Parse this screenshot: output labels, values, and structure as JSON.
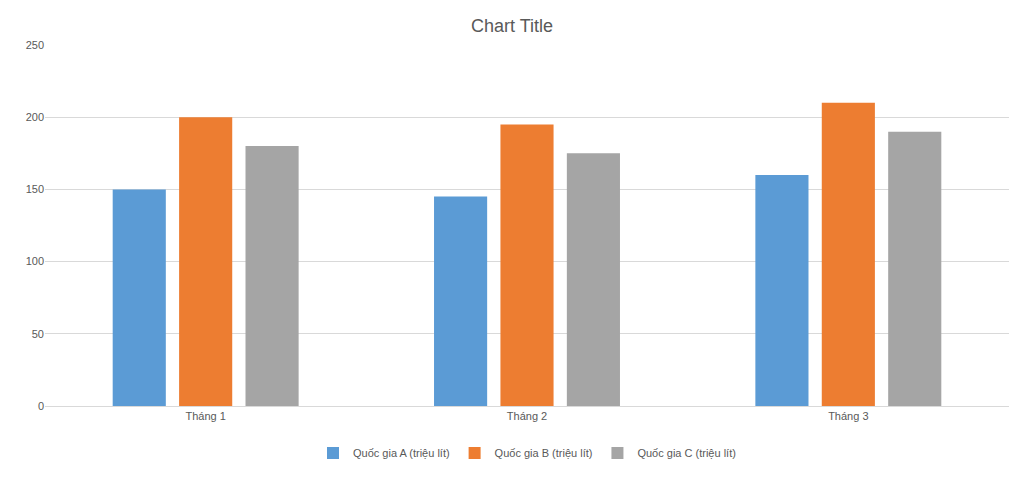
{
  "chart_data": {
    "type": "bar",
    "title": "Chart Title",
    "categories": [
      "Tháng 1",
      "Tháng 2",
      "Tháng 3"
    ],
    "series": [
      {
        "name": "Quốc gia A (triệu lít)",
        "color": "#5b9bd5",
        "values": [
          150,
          145,
          160
        ]
      },
      {
        "name": "Quốc gia B (triệu lít)",
        "color": "#ed7d31",
        "values": [
          200,
          195,
          210
        ]
      },
      {
        "name": "Quốc gia C (triệu lít)",
        "color": "#a5a5a5",
        "values": [
          180,
          175,
          190
        ]
      }
    ],
    "ylim": [
      0,
      250
    ],
    "yticks": [
      0,
      50,
      100,
      150,
      200,
      250
    ],
    "grid": true,
    "legend": "bottom"
  }
}
